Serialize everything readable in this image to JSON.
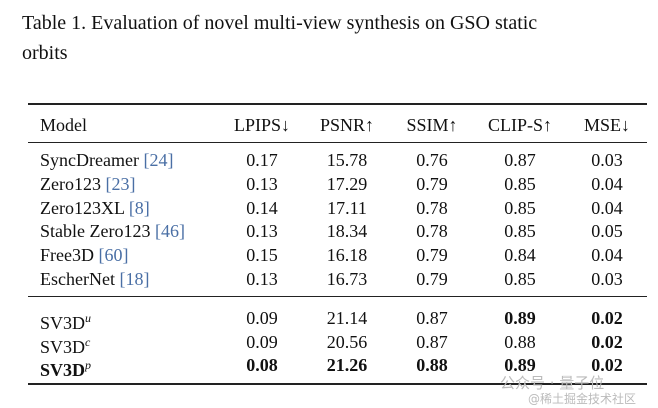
{
  "caption": [
    "Table 1.  Evaluation of novel multi-view synthesis on GSO static",
    "orbits"
  ],
  "table": {
    "header": [
      "Model",
      "LPIPS↓",
      "PSNR↑",
      "SSIM↑",
      "CLIP-S↑",
      "MSE↓"
    ],
    "groups": [
      [
        {
          "name": "SyncDreamer",
          "ref": "[24]",
          "values": [
            "0.17",
            "15.78",
            "0.76",
            "0.87",
            "0.03"
          ]
        },
        {
          "name": "Zero123",
          "ref": "[23]",
          "values": [
            "0.13",
            "17.29",
            "0.79",
            "0.85",
            "0.04"
          ]
        },
        {
          "name": "Zero123XL",
          "ref": "[8]",
          "values": [
            "0.14",
            "17.11",
            "0.78",
            "0.85",
            "0.04"
          ]
        },
        {
          "name": "Stable Zero123",
          "ref": "[46]",
          "values": [
            "0.13",
            "18.34",
            "0.78",
            "0.85",
            "0.05"
          ]
        },
        {
          "name": "Free3D",
          "ref": "[60]",
          "values": [
            "0.15",
            "16.18",
            "0.79",
            "0.84",
            "0.04"
          ]
        },
        {
          "name": "EscherNet",
          "ref": "[18]",
          "values": [
            "0.13",
            "16.73",
            "0.79",
            "0.85",
            "0.03"
          ]
        }
      ],
      [
        {
          "name": "SV3D",
          "sup": "u",
          "values": [
            "0.09",
            "21.14",
            "0.87",
            "0.89",
            "0.02"
          ]
        },
        {
          "name": "SV3D",
          "sup": "c",
          "values": [
            "0.09",
            "20.56",
            "0.87",
            "0.88",
            "0.02"
          ]
        },
        {
          "name": "SV3D",
          "sup": "p",
          "values": [
            "0.08",
            "21.26",
            "0.88",
            "0.89",
            "0.02"
          ]
        }
      ]
    ]
  },
  "watermark": [
    "公众号 · 量子位",
    "@稀土掘金技术社区"
  ]
}
